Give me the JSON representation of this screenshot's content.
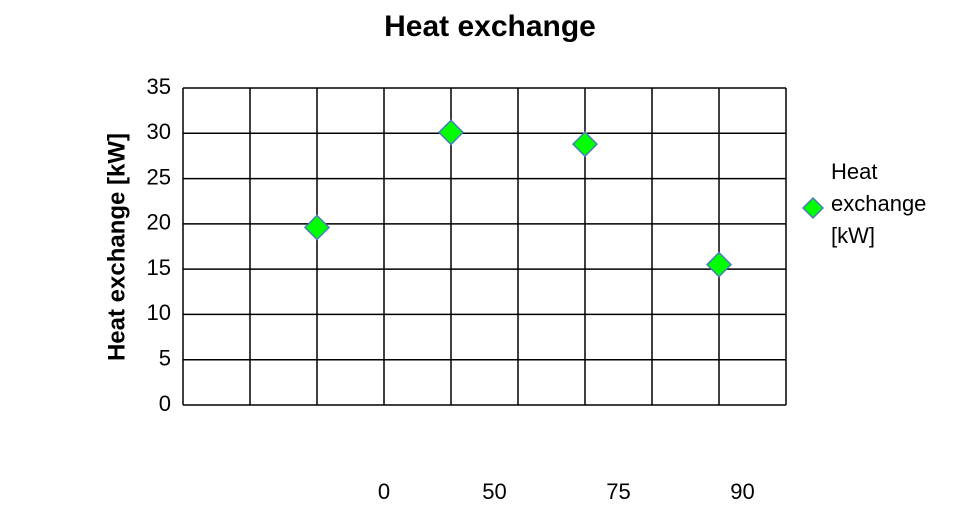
{
  "chart_data": {
    "type": "scatter",
    "title": "Heat exchange",
    "ylabel": "Heat exchange [kW]",
    "series": [
      {
        "name": "Heat exchange [kW]",
        "color": "#00ff00",
        "x": [
          2,
          4,
          6,
          8
        ],
        "values": [
          19.6,
          30.1,
          28.8,
          15.5
        ]
      }
    ],
    "xlim": [
      0,
      9
    ],
    "xticks": [
      {
        "value": 3,
        "label": "0"
      },
      {
        "value": 4.65,
        "label": "50"
      },
      {
        "value": 6.5,
        "label": "75"
      },
      {
        "value": 8.35,
        "label": "90"
      }
    ],
    "ylim": [
      0,
      35
    ],
    "yticks": [
      0,
      5,
      10,
      15,
      20,
      25,
      30,
      35
    ],
    "grid": true,
    "legend": "right"
  }
}
